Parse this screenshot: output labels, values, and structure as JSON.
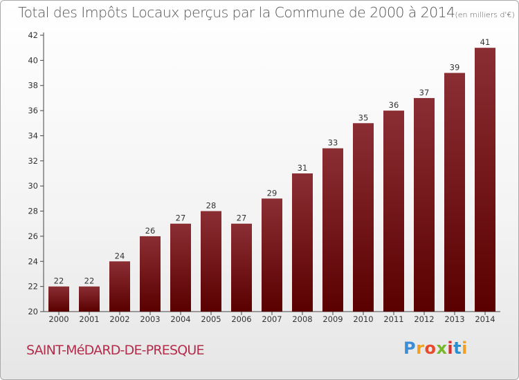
{
  "title": "Total des Impôts Locaux perçus par la Commune de 2000 à 2014",
  "title_unit": "(en milliers d'€)",
  "commune": "SAINT-MéDARD-DE-PRESQUE",
  "logo": {
    "text": "Proxiti"
  },
  "colors": {
    "bar_top": "#8b2e34",
    "bar_bottom": "#5a0000",
    "commune_text": "#b32d4b",
    "title_text": "#555555"
  },
  "chart_data": {
    "type": "bar",
    "title": "Total des Impôts Locaux perçus par la Commune de 2000 à 2014",
    "xlabel": "",
    "ylabel": "",
    "categories": [
      "2000",
      "2001",
      "2002",
      "2003",
      "2004",
      "2005",
      "2006",
      "2007",
      "2008",
      "2009",
      "2010",
      "2011",
      "2012",
      "2013",
      "2014"
    ],
    "values": [
      22,
      22,
      24,
      26,
      27,
      28,
      27,
      29,
      31,
      33,
      35,
      36,
      37,
      39,
      41
    ],
    "ylim": [
      20,
      42
    ],
    "yticks": [
      20,
      22,
      24,
      26,
      28,
      30,
      32,
      34,
      36,
      38,
      40,
      42
    ],
    "grid": false,
    "legend": "none"
  }
}
